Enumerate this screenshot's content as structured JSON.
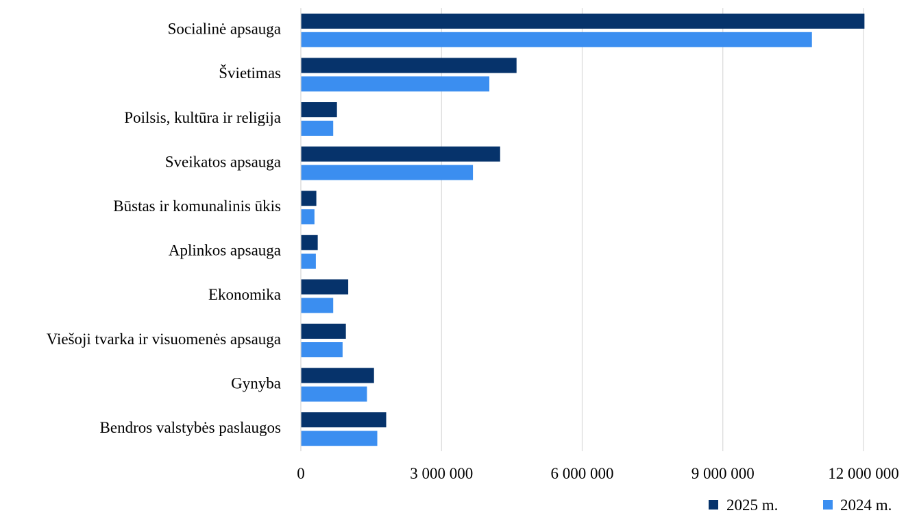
{
  "chart_data": {
    "type": "bar",
    "orientation": "horizontal",
    "categories": [
      "Socialinė apsauga",
      "Švietimas",
      "Poilsis, kultūra ir religija",
      "Sveikatos apsauga",
      "Būstas ir komunalinis ūkis",
      "Aplinkos apsauga",
      "Ekonomika",
      "Viešoji tvarka ir visuomenės apsauga",
      "Gynyba",
      "Bendros valstybės paslaugos"
    ],
    "series": [
      {
        "name": "2025 m.",
        "color": "#06336b",
        "values": [
          12020000,
          4600000,
          770000,
          4250000,
          330000,
          360000,
          1010000,
          960000,
          1560000,
          1820000
        ]
      },
      {
        "name": "2024 m.",
        "color": "#3b8ef0",
        "values": [
          10900000,
          4020000,
          690000,
          3670000,
          290000,
          320000,
          690000,
          890000,
          1410000,
          1630000
        ]
      }
    ],
    "xlim": [
      0,
      12000000
    ],
    "xticks": [
      0,
      3000000,
      6000000,
      9000000,
      12000000
    ],
    "xtick_labels": [
      "0",
      "3 000 000",
      "6 000 000",
      "9 000 000",
      "12 000 000"
    ],
    "grid": true,
    "grid_color": "#d9d9d9",
    "legend_position": "bottom-right",
    "title": "",
    "xlabel": "",
    "ylabel": ""
  }
}
